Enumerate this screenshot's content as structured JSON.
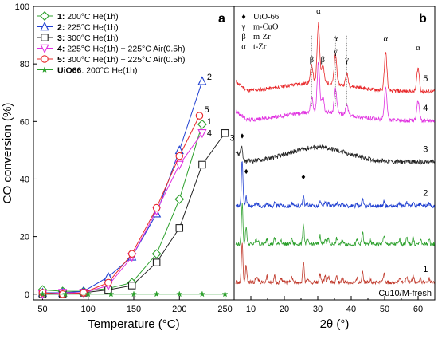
{
  "chart_data": [
    {
      "type": "line",
      "panel_label": "a",
      "xlabel": "Temperature (°C)",
      "ylabel": "CO conversion (%)",
      "xlim": [
        40,
        260
      ],
      "ylim": [
        -2,
        100
      ],
      "xticks": [
        50,
        100,
        150,
        200,
        250
      ],
      "yticks": [
        0,
        20,
        40,
        60,
        80,
        100
      ],
      "legend_position": "top-left",
      "series": [
        {
          "key": "1",
          "num": "1:",
          "name": " 200°C He(1h)",
          "color": "#2ca02c",
          "marker": "diamond",
          "end_label": "1",
          "x": [
            50,
            72,
            95,
            122,
            148,
            175,
            200,
            225
          ],
          "y": [
            1.5,
            1,
            1,
            2,
            4,
            14,
            33,
            59
          ]
        },
        {
          "key": "2",
          "num": "2:",
          "name": " 225°C He(1h)",
          "color": "#1f3fd1",
          "marker": "triangle-up",
          "end_label": "2",
          "x": [
            50,
            72,
            95,
            122,
            148,
            175,
            200,
            225
          ],
          "y": [
            0.5,
            0.5,
            1,
            6,
            13,
            28,
            50,
            74
          ]
        },
        {
          "key": "3",
          "num": "3:",
          "name": " 300°C He(1h)",
          "color": "#222222",
          "marker": "square",
          "end_label": "3",
          "x": [
            50,
            72,
            95,
            122,
            148,
            175,
            200,
            225,
            250
          ],
          "y": [
            0,
            0,
            0.5,
            1.5,
            3,
            11,
            23,
            45,
            56
          ]
        },
        {
          "key": "4",
          "num": "4:",
          "name": " 225°C He(1h) + 225°C Air(0.5h)",
          "color": "#e030e0",
          "marker": "triangle-down",
          "end_label": "4",
          "x": [
            50,
            72,
            95,
            122,
            148,
            175,
            200,
            225
          ],
          "y": [
            0,
            0.5,
            0.5,
            3,
            13,
            29,
            45,
            56
          ]
        },
        {
          "key": "5",
          "num": "5:",
          "name": " 300°C He(1h) + 225°C Air(0.5h)",
          "color": "#e8282a",
          "marker": "circle",
          "end_label": "5",
          "x": [
            50,
            72,
            95,
            122,
            148,
            175,
            200,
            222
          ],
          "y": [
            0.5,
            0,
            0.5,
            4,
            14,
            30,
            48,
            62
          ]
        },
        {
          "key": "6",
          "num": "UiO66",
          "name": ": 200°C He(1h)",
          "color": "#2ca02c",
          "marker": "star",
          "end_label": "",
          "x": [
            50,
            75,
            100,
            125,
            150,
            175,
            200,
            225,
            250
          ],
          "y": [
            0,
            0,
            0,
            0,
            0,
            0,
            0,
            0,
            0
          ]
        }
      ]
    },
    {
      "type": "line",
      "panel_label": "b",
      "xlabel": "2θ (°)",
      "ylabel": "",
      "xlim": [
        5,
        65
      ],
      "xticks": [
        10,
        20,
        30,
        40,
        50,
        60
      ],
      "ylim": [
        0,
        100
      ],
      "baseline_label": "Cu10/M-fresh",
      "phase_key": [
        {
          "sym": "♦",
          "name": "UiO-66"
        },
        {
          "sym": "γ",
          "name": "m-CuO"
        },
        {
          "sym": "β",
          "name": "m-Zr"
        },
        {
          "sym": "α",
          "name": "t-Zr"
        }
      ],
      "peak_marks": [
        {
          "sym": "α",
          "x": 30.2
        },
        {
          "sym": "β",
          "x": 28.2
        },
        {
          "sym": "β",
          "x": 31.5
        },
        {
          "sym": "α",
          "x": 35.3
        },
        {
          "sym": "γ",
          "x": 35.3
        },
        {
          "sym": "γ",
          "x": 38.7
        },
        {
          "sym": "α",
          "x": 50.3
        },
        {
          "sym": "α",
          "x": 60.0
        }
      ],
      "uio_marks": [
        {
          "sym": "♦",
          "x": 7.4
        },
        {
          "sym": "♦",
          "x": 8.6
        },
        {
          "sym": "♦",
          "x": 25.7
        }
      ],
      "patterns": [
        {
          "name": "5",
          "color": "#e8282a",
          "offset": 71,
          "profile": "tzr"
        },
        {
          "name": "4",
          "color": "#e030e0",
          "offset": 61,
          "profile": "tzr2"
        },
        {
          "name": "3",
          "color": "#222222",
          "offset": 47,
          "profile": "amorph"
        },
        {
          "name": "2",
          "color": "#1f3fd1",
          "offset": 32,
          "profile": "uio_weak"
        },
        {
          "name": "",
          "color": "#2ca02c",
          "offset": 19,
          "profile": "uio"
        },
        {
          "name": "1",
          "color": "#c0392b",
          "offset": 6,
          "profile": "uio"
        }
      ]
    }
  ]
}
